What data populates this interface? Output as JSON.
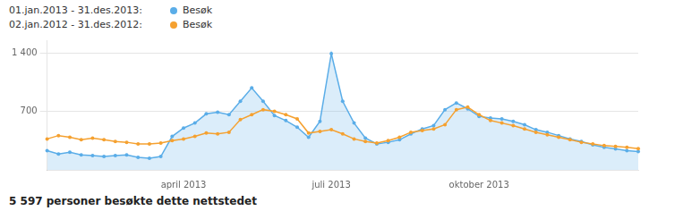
{
  "chart_data": {
    "type": "line",
    "title": "5 597 personer besøkte dette nettstedet",
    "annotations": [
      "01.jan.2013 - 31.des.2013:",
      "02.jan.2012 - 31.des.2012:"
    ],
    "categories": [
      null,
      null,
      null,
      null,
      null,
      null,
      null,
      null,
      null,
      null,
      null,
      null,
      "april 2013",
      null,
      null,
      null,
      null,
      null,
      null,
      null,
      null,
      null,
      null,
      null,
      null,
      "juli 2013",
      null,
      null,
      null,
      null,
      null,
      null,
      null,
      null,
      null,
      null,
      null,
      null,
      "oktober 2013",
      null,
      null,
      null,
      null,
      null,
      null,
      null,
      null,
      null,
      null,
      null,
      null,
      null,
      null
    ],
    "series": [
      {
        "name": "Besøk",
        "color": "#5aade8",
        "type": "area",
        "values": [
          230,
          190,
          210,
          180,
          170,
          160,
          170,
          180,
          150,
          140,
          160,
          400,
          500,
          560,
          670,
          690,
          660,
          820,
          980,
          820,
          650,
          590,
          510,
          390,
          580,
          1390,
          820,
          560,
          380,
          310,
          330,
          360,
          430,
          490,
          530,
          720,
          800,
          730,
          640,
          620,
          610,
          580,
          540,
          480,
          450,
          410,
          370,
          340,
          300,
          270,
          250,
          230,
          220
        ]
      },
      {
        "name": "Besøk",
        "color": "#f5a130",
        "type": "line",
        "values": [
          370,
          410,
          390,
          360,
          380,
          360,
          340,
          330,
          310,
          310,
          320,
          350,
          370,
          400,
          440,
          430,
          450,
          600,
          660,
          720,
          700,
          660,
          610,
          440,
          460,
          480,
          430,
          370,
          340,
          320,
          350,
          390,
          450,
          470,
          490,
          540,
          720,
          750,
          660,
          590,
          560,
          530,
          490,
          450,
          420,
          390,
          360,
          330,
          310,
          290,
          280,
          270,
          255
        ]
      }
    ],
    "ylim": [
      0,
      1550
    ],
    "yticks": [
      700,
      {
        "value": 1400,
        "label": "1 400"
      }
    ],
    "grid": true,
    "legend": "top",
    "marker": "circle"
  }
}
